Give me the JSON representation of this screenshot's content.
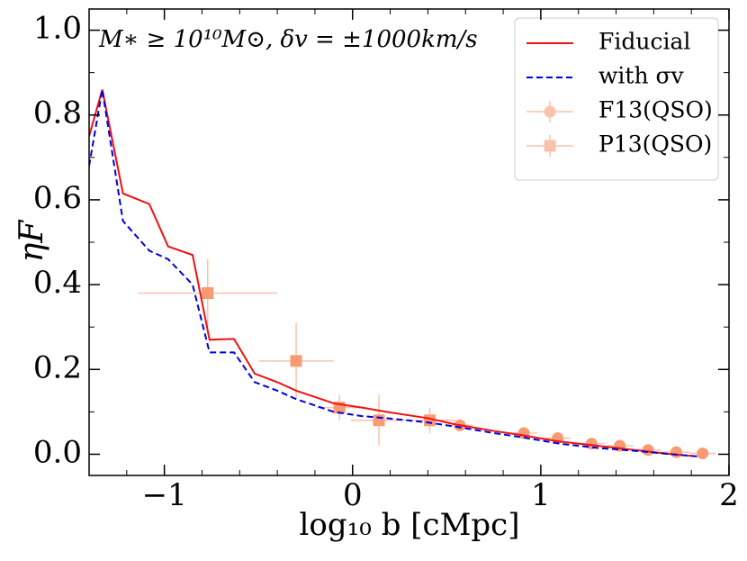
{
  "chart_data": {
    "type": "line",
    "annotation": "M∗ ≥ 10¹⁰M⊙, δv = ±1000km/s",
    "x_label": "log₁₀ b [cMpc]",
    "y_label": "ηF",
    "xlim": [
      -1.4,
      2
    ],
    "ylim": [
      -0.05,
      1.05
    ],
    "xticks": [
      {
        "value": -1,
        "label": "−1"
      },
      0,
      1,
      2
    ],
    "yticks": [
      {
        "value": 0,
        "label": "0.0"
      },
      0.2,
      0.4,
      0.6,
      0.8,
      {
        "value": 1,
        "label": "1.0"
      }
    ],
    "x_minor_ticks": [
      -1.2,
      -0.8,
      -0.6,
      -0.4,
      -0.2,
      0.2,
      0.4,
      0.6,
      0.8,
      1.2,
      1.4,
      1.6,
      1.8
    ],
    "y_minor_ticks": [
      0.1,
      0.3,
      0.5,
      0.7,
      0.9
    ],
    "legend": "upper right",
    "x": [
      -1.4,
      -1.33,
      -1.22,
      -1.08,
      -0.98,
      -0.85,
      -0.76,
      -0.63,
      -0.52,
      -0.4,
      -0.3,
      -0.1,
      0.05,
      0.18,
      0.4,
      0.55,
      0.75,
      0.9,
      1.1,
      1.3,
      1.5,
      1.7,
      1.83
    ],
    "series": [
      {
        "name": "Fiducial",
        "color": "#ee1111",
        "dash": false,
        "values": [
          0.75,
          0.86,
          0.615,
          0.59,
          0.49,
          0.47,
          0.27,
          0.272,
          0.19,
          0.17,
          0.15,
          0.12,
          0.11,
          0.1,
          0.085,
          0.07,
          0.055,
          0.045,
          0.03,
          0.02,
          0.01,
          0.0,
          -0.005
        ]
      },
      {
        "name": "with σv",
        "color": "#0000dd",
        "dash": true,
        "values": [
          0.68,
          0.86,
          0.55,
          0.48,
          0.46,
          0.4,
          0.24,
          0.24,
          0.17,
          0.15,
          0.13,
          0.1,
          0.09,
          0.085,
          0.075,
          0.065,
          0.05,
          0.04,
          0.025,
          0.015,
          0.008,
          0.0,
          -0.005
        ]
      }
    ],
    "points": [
      {
        "name": "F13(QSO)",
        "marker": "circle",
        "color": "#f89a72",
        "x": [
          0.57,
          0.91,
          1.09,
          1.27,
          1.42,
          1.57,
          1.72,
          1.86
        ],
        "values": [
          0.068,
          0.05,
          0.038,
          0.025,
          0.02,
          0.01,
          0.005,
          0.002
        ],
        "xerr": [
          0.07,
          0.07,
          0.07,
          0.07,
          0.07,
          0.07,
          0.07,
          0.07
        ],
        "yerr": [
          0.01,
          0.01,
          0.01,
          0.01,
          0.01,
          0.01,
          0.01,
          0.01
        ]
      },
      {
        "name": "P13(QSO)",
        "marker": "square",
        "color": "#f89a72",
        "x": [
          -0.77,
          -0.3,
          -0.07,
          0.14,
          0.41
        ],
        "values": [
          0.38,
          0.22,
          0.11,
          0.08,
          0.08
        ],
        "xerr": [
          0.37,
          0.2,
          0.12,
          0.15,
          0.14
        ],
        "yerr": [
          0.08,
          0.09,
          0.03,
          0.06,
          0.03
        ]
      }
    ]
  }
}
